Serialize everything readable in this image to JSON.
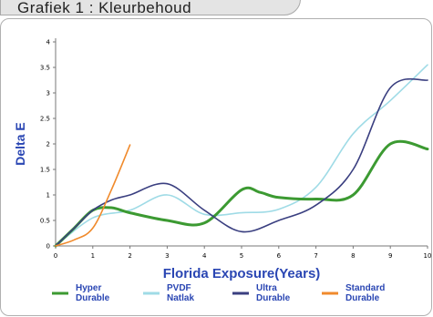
{
  "header": {
    "title": "Grafiek 1 : Kleurbehoud"
  },
  "colors": {
    "axis_label": "#2a46b3",
    "hyper_durable": "#3c9a32",
    "pvdf_natlak": "#9fdbe6",
    "ultra_durable": "#3a3f80",
    "standard_durable": "#f08a2c"
  },
  "chart_data": {
    "type": "line",
    "title": "",
    "xlabel": "Florida Exposure(Years)",
    "ylabel": "Delta E",
    "xlim": [
      0,
      10
    ],
    "ylim": [
      0,
      4
    ],
    "x_ticks": [
      "0",
      "1",
      "2",
      "3",
      "4",
      "5",
      "6",
      "7",
      "8",
      "9",
      "10"
    ],
    "y_ticks": [
      "0",
      "0.5",
      "1",
      "1.5",
      "2",
      "2.5",
      "3",
      "3.5",
      "4"
    ],
    "legend_position": "bottom",
    "series": [
      {
        "name": "Hyper Durable",
        "legend_lines": [
          "Hyper",
          "Durable"
        ],
        "color": "#3c9a32",
        "points": [
          [
            0,
            0
          ],
          [
            0.5,
            0.35
          ],
          [
            1,
            0.7
          ],
          [
            1.5,
            0.75
          ],
          [
            2,
            0.65
          ],
          [
            3,
            0.5
          ],
          [
            4,
            0.45
          ],
          [
            5,
            1.1
          ],
          [
            5.5,
            1.05
          ],
          [
            6,
            0.95
          ],
          [
            7,
            0.92
          ],
          [
            8,
            1.0
          ],
          [
            9,
            2.0
          ],
          [
            10,
            1.9
          ]
        ]
      },
      {
        "name": "PVDF Natlak",
        "legend_lines": [
          "PVDF",
          "Natlak"
        ],
        "color": "#9fdbe6",
        "points": [
          [
            0,
            0
          ],
          [
            1,
            0.55
          ],
          [
            2,
            0.7
          ],
          [
            3,
            1.0
          ],
          [
            4,
            0.62
          ],
          [
            5,
            0.65
          ],
          [
            6,
            0.72
          ],
          [
            7,
            1.15
          ],
          [
            8,
            2.2
          ],
          [
            9,
            2.85
          ],
          [
            10,
            3.55
          ]
        ]
      },
      {
        "name": "Ultra Durable",
        "legend_lines": [
          "Ultra",
          "Durable"
        ],
        "color": "#3a3f80",
        "points": [
          [
            0,
            0
          ],
          [
            0.5,
            0.35
          ],
          [
            1,
            0.7
          ],
          [
            1.5,
            0.9
          ],
          [
            2,
            1.0
          ],
          [
            3,
            1.22
          ],
          [
            4,
            0.7
          ],
          [
            5,
            0.28
          ],
          [
            6,
            0.5
          ],
          [
            7,
            0.8
          ],
          [
            8,
            1.5
          ],
          [
            9,
            3.1
          ],
          [
            10,
            3.25
          ]
        ]
      },
      {
        "name": "Standard Durable",
        "legend_lines": [
          "Standard",
          "Durable"
        ],
        "color": "#f08a2c",
        "points": [
          [
            0,
            0
          ],
          [
            0.5,
            0.12
          ],
          [
            1,
            0.35
          ],
          [
            1.5,
            1.1
          ],
          [
            2,
            1.98
          ]
        ]
      }
    ]
  }
}
